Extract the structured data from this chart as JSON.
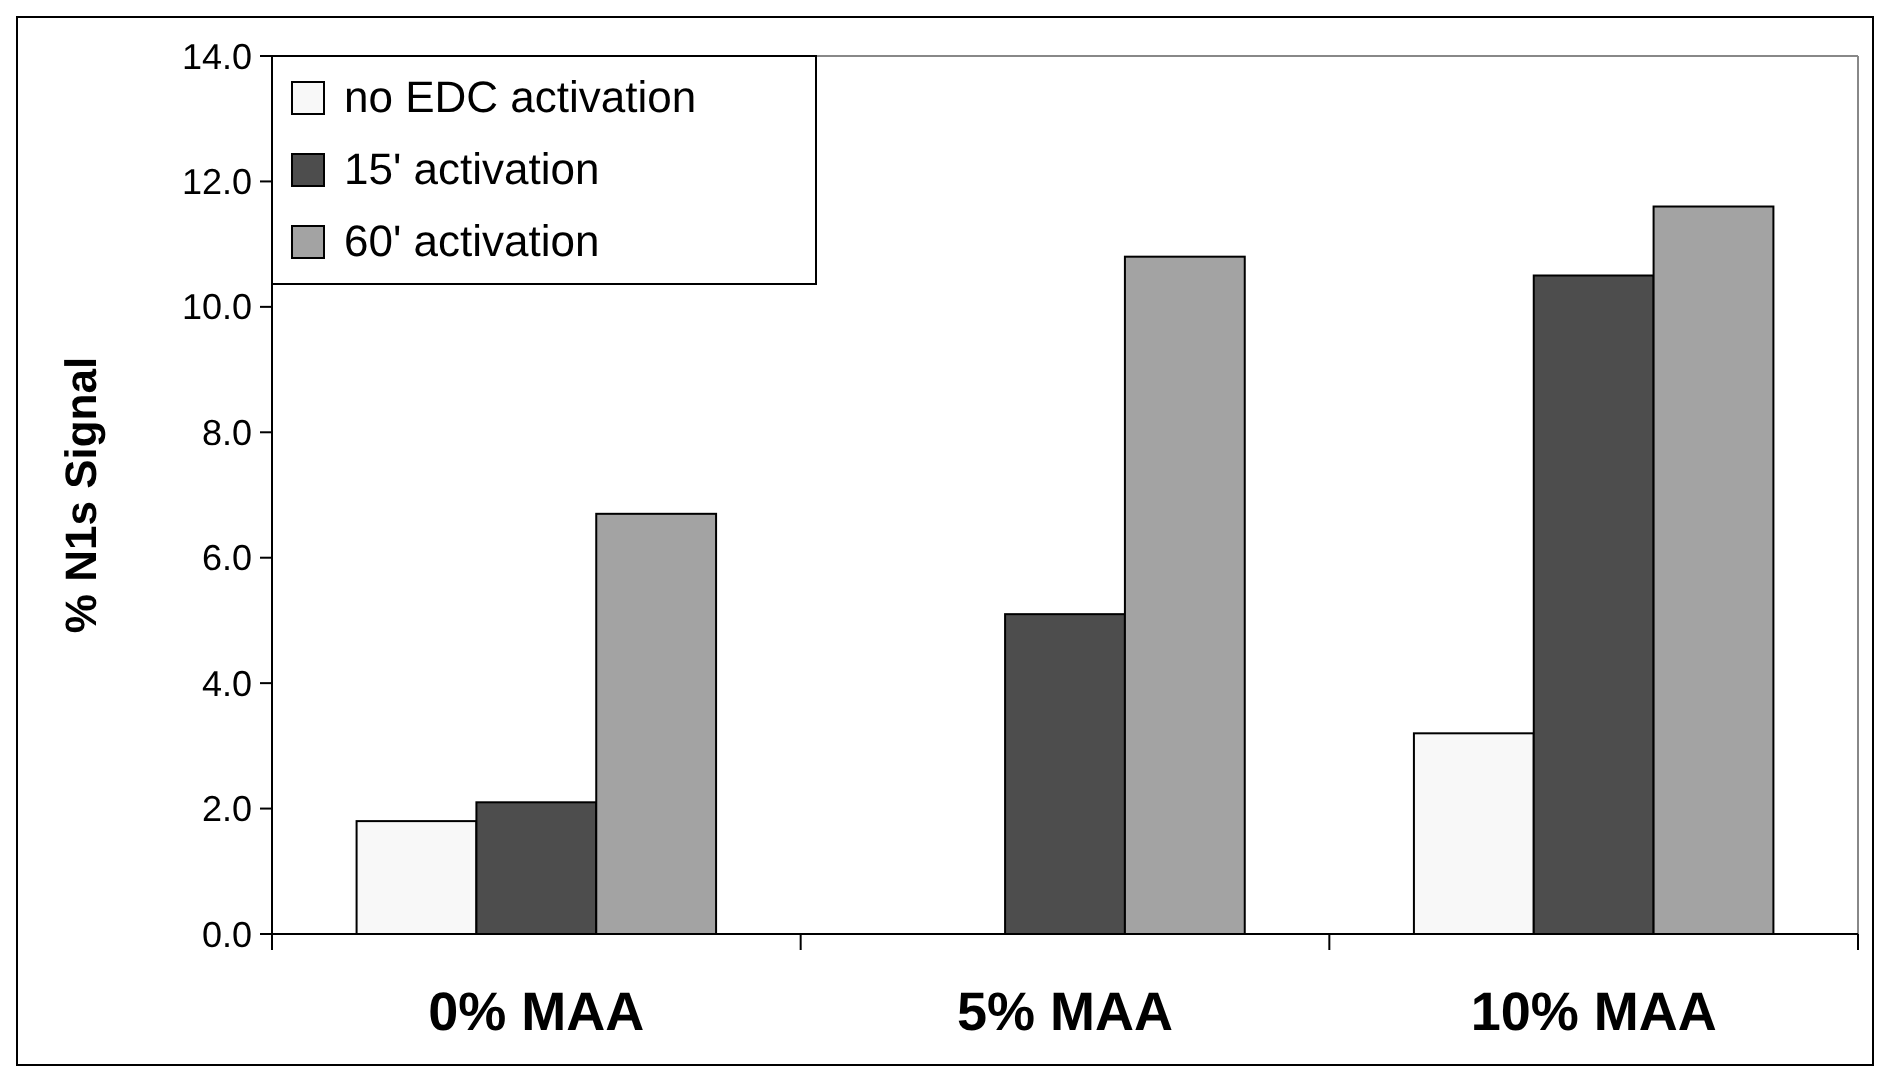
{
  "chart_data": {
    "type": "bar",
    "ylabel": "% N1s Signal",
    "categories": [
      "0% MAA",
      "5% MAA",
      "10% MAA"
    ],
    "series": [
      {
        "name": "no EDC activation",
        "color": "#f8f8f8",
        "values": [
          1.8,
          null,
          3.2
        ]
      },
      {
        "name": "15' activation",
        "color": "#4d4d4d",
        "values": [
          2.1,
          5.1,
          10.5
        ]
      },
      {
        "name": "60' activation",
        "color": "#a3a3a3",
        "values": [
          6.7,
          10.8,
          11.6
        ]
      }
    ],
    "ylim": [
      0,
      14
    ],
    "yticks": [
      {
        "value": 0,
        "label": "0.0"
      },
      {
        "value": 2,
        "label": "2.0"
      },
      {
        "value": 4,
        "label": "4.0"
      },
      {
        "value": 6,
        "label": "6.0"
      },
      {
        "value": 8,
        "label": "8.0"
      },
      {
        "value": 10,
        "label": "10.0"
      },
      {
        "value": 12,
        "label": "12.0"
      },
      {
        "value": 14,
        "label": "14.0"
      }
    ],
    "grid": false,
    "legend": "top left"
  }
}
